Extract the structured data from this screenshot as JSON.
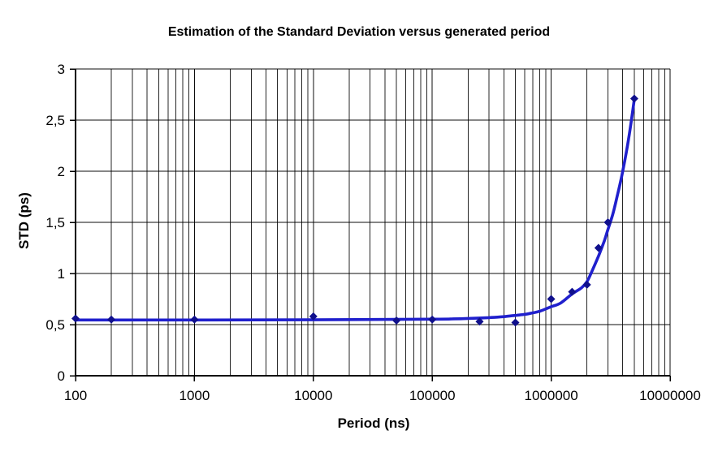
{
  "chart_data": {
    "type": "scatter",
    "title": "Estimation of the Standard Deviation versus generated period",
    "xlabel": "Period (ns)",
    "ylabel": "STD (ps)",
    "x_scale": "log",
    "y_scale": "linear",
    "xlim": [
      100,
      10000000
    ],
    "ylim": [
      0,
      3
    ],
    "grid": "both-major-plus-x-minor",
    "legend": "none",
    "x_tick_values": [
      100,
      1000,
      10000,
      100000,
      1000000,
      10000000
    ],
    "x_tick_labels": [
      "100",
      "1000",
      "10000",
      "100000",
      "1000000",
      "10000000"
    ],
    "y_tick_values": [
      0,
      0.5,
      1,
      1.5,
      2,
      2.5,
      3
    ],
    "y_tick_labels": [
      "0",
      "0,5",
      "1",
      "1,5",
      "2",
      "2,5",
      "3"
    ],
    "decimal_separator": ",",
    "points": {
      "marker": "diamond",
      "color": "#10108C",
      "x": [
        100,
        200,
        1000,
        10000,
        50000,
        100000,
        250000,
        500000,
        1000000,
        1500000,
        2000000,
        2500000,
        3000000,
        5000000
      ],
      "y": [
        0.56,
        0.55,
        0.55,
        0.58,
        0.54,
        0.55,
        0.53,
        0.52,
        0.75,
        0.82,
        0.89,
        1.25,
        1.5,
        2.71
      ]
    },
    "trend": {
      "style": "smooth-line",
      "color": "#2020CD",
      "x": [
        100,
        1000,
        10000,
        100000,
        150000,
        200000,
        300000,
        400000,
        500000,
        600000,
        700000,
        800000,
        1000000,
        1200000,
        1500000,
        1800000,
        2000000,
        2200000,
        2500000,
        2800000,
        3000000,
        3300000,
        3600000,
        4000000,
        4500000,
        5000000
      ],
      "y": [
        0.545,
        0.545,
        0.547,
        0.553,
        0.556,
        0.56,
        0.568,
        0.578,
        0.59,
        0.6,
        0.615,
        0.63,
        0.675,
        0.71,
        0.8,
        0.86,
        0.92,
        1.02,
        1.17,
        1.32,
        1.43,
        1.58,
        1.76,
        2.0,
        2.33,
        2.7
      ]
    },
    "colors": {
      "gridline": "#000000",
      "axis": "#000000",
      "text": "#000000",
      "background": "#ffffff"
    }
  }
}
